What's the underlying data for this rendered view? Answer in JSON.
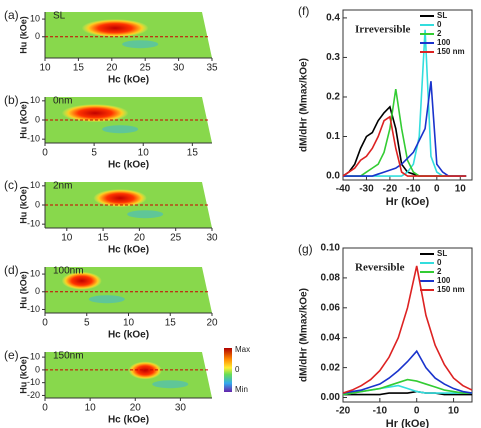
{
  "chart_data": [
    {
      "type": "heatmap",
      "panel": "(a)",
      "sample": "SL",
      "xlabel": "Hc (kOe)",
      "ylabel": "Hu (kOe)",
      "xlim": [
        10,
        35
      ],
      "xticks": [
        10,
        15,
        20,
        25,
        30,
        35
      ],
      "ylim": [
        -12,
        14
      ],
      "yticks": [
        10,
        0
      ]
    },
    {
      "type": "heatmap",
      "panel": "(b)",
      "sample": "0nm",
      "xlabel": "Hc (kOe)",
      "ylabel": "Hu (kOe)",
      "xlim": [
        0,
        17
      ],
      "xticks": [
        0,
        5,
        10,
        15
      ],
      "ylim": [
        -12,
        12
      ],
      "yticks": [
        10,
        0,
        -10
      ]
    },
    {
      "type": "heatmap",
      "panel": "(c)",
      "sample": "2nm",
      "xlabel": "Hc (kOe)",
      "ylabel": "Hu (kOe)",
      "xlim": [
        7,
        30
      ],
      "xticks": [
        10,
        15,
        20,
        25,
        30
      ],
      "ylim": [
        -12,
        12
      ],
      "yticks": [
        10,
        0,
        -10
      ]
    },
    {
      "type": "heatmap",
      "panel": "(d)",
      "sample": "100nm",
      "xlabel": "Hc (kOe)",
      "ylabel": "Hu (kOe)",
      "xlim": [
        0,
        20
      ],
      "xticks": [
        0,
        5,
        10,
        15,
        20
      ],
      "ylim": [
        -12,
        14
      ],
      "yticks": [
        10,
        0,
        -10
      ]
    },
    {
      "type": "heatmap",
      "panel": "(e)",
      "sample": "150nm",
      "xlabel": "Hc (kOe)",
      "ylabel": "Hu (kOe)",
      "xlim": [
        0,
        37
      ],
      "xticks": [
        0,
        10,
        20,
        30
      ],
      "ylim": [
        -22,
        14
      ],
      "yticks": [
        10,
        0,
        -10,
        -20
      ],
      "colorbar_labels": [
        "Max",
        "0",
        "Min"
      ]
    },
    {
      "type": "line",
      "panel": "(f)",
      "title": "Irreversible",
      "xlabel": "Hr (kOe)",
      "ylabel": "dM/dHr (Mmax/kOe)",
      "xlim": [
        -40,
        15
      ],
      "xticks": [
        -40,
        -30,
        -20,
        -10,
        0,
        10
      ],
      "ylim": [
        -0.01,
        0.42
      ],
      "yticks": [
        {
          "value": 0,
          "label": "0.0"
        },
        0.1,
        0.2,
        0.3,
        0.4
      ],
      "x": [
        -40,
        -37.5,
        -35,
        -32.5,
        -30,
        -27.5,
        -25,
        -22.5,
        -20,
        -17.5,
        -15,
        -12.5,
        -10,
        -7.5,
        -5,
        -2.5,
        0,
        2.5,
        5,
        7.5,
        10,
        12.5
      ],
      "series": [
        {
          "name": "SL",
          "color": "#000000",
          "values": [
            0,
            0.01,
            0.03,
            0.07,
            0.1,
            0.11,
            0.14,
            0.16,
            0.175,
            0.12,
            0.03,
            0.01,
            0.005,
            0,
            0,
            0,
            0,
            0,
            0,
            0,
            0,
            0
          ]
        },
        {
          "name": "0",
          "color": "#33dddd",
          "values": [
            0,
            0,
            0,
            0,
            0,
            0,
            0,
            0,
            0,
            0,
            0,
            0.01,
            0.03,
            0.1,
            0.37,
            0.05,
            0.01,
            0,
            0,
            0,
            0,
            0
          ]
        },
        {
          "name": "2",
          "color": "#33cc33",
          "values": [
            0,
            0,
            0,
            0,
            0.01,
            0.02,
            0.03,
            0.06,
            0.12,
            0.22,
            0.12,
            0.04,
            0.01,
            0,
            0,
            0,
            0,
            0,
            0,
            0,
            0,
            0
          ]
        },
        {
          "name": "100",
          "color": "#1a33cc",
          "values": [
            0,
            0,
            0,
            0,
            0,
            0,
            0.005,
            0.01,
            0.015,
            0.02,
            0.03,
            0.045,
            0.06,
            0.09,
            0.12,
            0.24,
            0.03,
            0.01,
            0,
            0,
            0,
            0
          ]
        },
        {
          "name": "150 nm",
          "color": "#dd2222",
          "values": [
            0,
            0.01,
            0.02,
            0.04,
            0.05,
            0.07,
            0.1,
            0.14,
            0.15,
            0.07,
            0.01,
            0,
            0,
            0,
            0,
            0,
            0,
            0,
            0,
            0,
            0,
            0
          ]
        }
      ]
    },
    {
      "type": "line",
      "panel": "(g)",
      "title": "Reversible",
      "xlabel": "Hr (kOe)",
      "ylabel": "dM/dHr (Mmax/kOe)",
      "xlim": [
        -20,
        15
      ],
      "xticks": [
        -20,
        -10,
        0,
        10
      ],
      "ylim": [
        -0.003,
        0.1
      ],
      "yticks": [
        {
          "value": 0,
          "label": "0.00"
        },
        {
          "value": 0.02,
          "label": "0.02"
        },
        {
          "value": 0.04,
          "label": "0.04"
        },
        {
          "value": 0.06,
          "label": "0.06"
        },
        {
          "value": 0.08,
          "label": "0.08"
        },
        {
          "value": 0.1,
          "label": "0.10"
        }
      ],
      "x": [
        -20,
        -17.5,
        -15,
        -12.5,
        -10,
        -7.5,
        -5,
        -2.5,
        0,
        2.5,
        5,
        7.5,
        10,
        12.5,
        15
      ],
      "series": [
        {
          "name": "SL",
          "color": "#000000",
          "values": [
            0.002,
            0.002,
            0.002,
            0.002,
            0.002,
            0.003,
            0.003,
            0.003,
            0.004,
            0.003,
            0.003,
            0.002,
            0.002,
            0.002,
            0.002
          ]
        },
        {
          "name": "0",
          "color": "#33dddd",
          "values": [
            0.002,
            0.003,
            0.004,
            0.005,
            0.006,
            0.007,
            0.008,
            0.006,
            0.004,
            0.003,
            0.003,
            0.003,
            0.003,
            0.003,
            0.003
          ]
        },
        {
          "name": "2",
          "color": "#33cc33",
          "values": [
            0.002,
            0.003,
            0.004,
            0.005,
            0.006,
            0.008,
            0.01,
            0.012,
            0.011,
            0.009,
            0.007,
            0.005,
            0.004,
            0.003,
            0.003
          ]
        },
        {
          "name": "100",
          "color": "#1a33cc",
          "values": [
            0.003,
            0.004,
            0.005,
            0.007,
            0.009,
            0.013,
            0.018,
            0.024,
            0.031,
            0.02,
            0.013,
            0.009,
            0.006,
            0.004,
            0.003
          ]
        },
        {
          "name": "150 nm",
          "color": "#dd2222",
          "values": [
            0.003,
            0.005,
            0.008,
            0.012,
            0.018,
            0.027,
            0.04,
            0.06,
            0.088,
            0.055,
            0.035,
            0.022,
            0.013,
            0.008,
            0.005
          ]
        }
      ]
    }
  ]
}
